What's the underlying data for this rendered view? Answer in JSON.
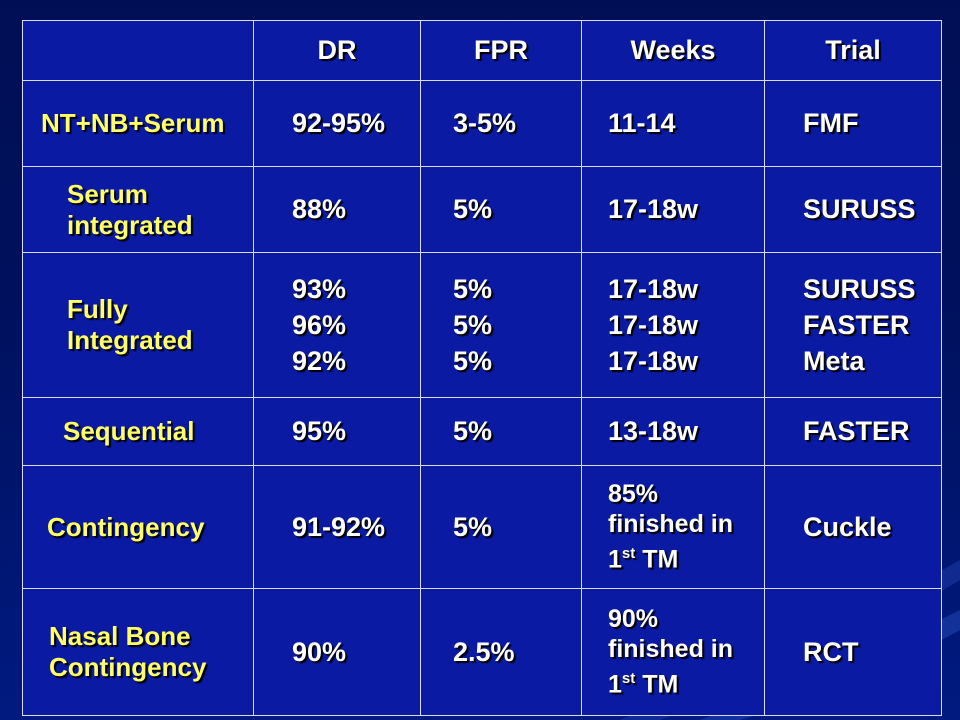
{
  "table": {
    "headers": [
      "",
      "DR",
      "FPR",
      "Weeks",
      "Trial"
    ],
    "rows": [
      {
        "label": "NT+NB+Serum",
        "dr": "92-95%",
        "fpr": "3-5%",
        "weeks": "11-14",
        "trial": "FMF"
      },
      {
        "label": "Serum integrated",
        "dr": "88%",
        "fpr": "5%",
        "weeks": "17-18w",
        "trial": "SURUSS"
      },
      {
        "label": "Fully Integrated",
        "dr": [
          "93%",
          "96%",
          "92%"
        ],
        "fpr": [
          "5%",
          "5%",
          "5%"
        ],
        "weeks": [
          "17-18w",
          "17-18w",
          "17-18w"
        ],
        "trial": [
          "SURUSS",
          "FASTER",
          "Meta"
        ]
      },
      {
        "label": "Sequential",
        "dr": "95%",
        "fpr": "5%",
        "weeks": "13-18w",
        "trial": "FASTER"
      },
      {
        "label": "Contingency",
        "dr": "91-92%",
        "fpr": "5%",
        "weeks_text": "85% finished in 1",
        "weeks_sup": "st",
        "weeks_tail": " TM",
        "trial": "Cuckle"
      },
      {
        "label": "Nasal Bone Contingency",
        "dr": "90%",
        "fpr": "2.5%",
        "weeks_text": "90% finished in 1",
        "weeks_sup": "st",
        "weeks_tail": " TM",
        "trial": "RCT"
      }
    ]
  },
  "colors": {
    "background": "#000f55",
    "table_fill": "#0b1aa3",
    "grid": "#d9dcef",
    "row_label": "#ffff66",
    "text": "#ffffff"
  }
}
